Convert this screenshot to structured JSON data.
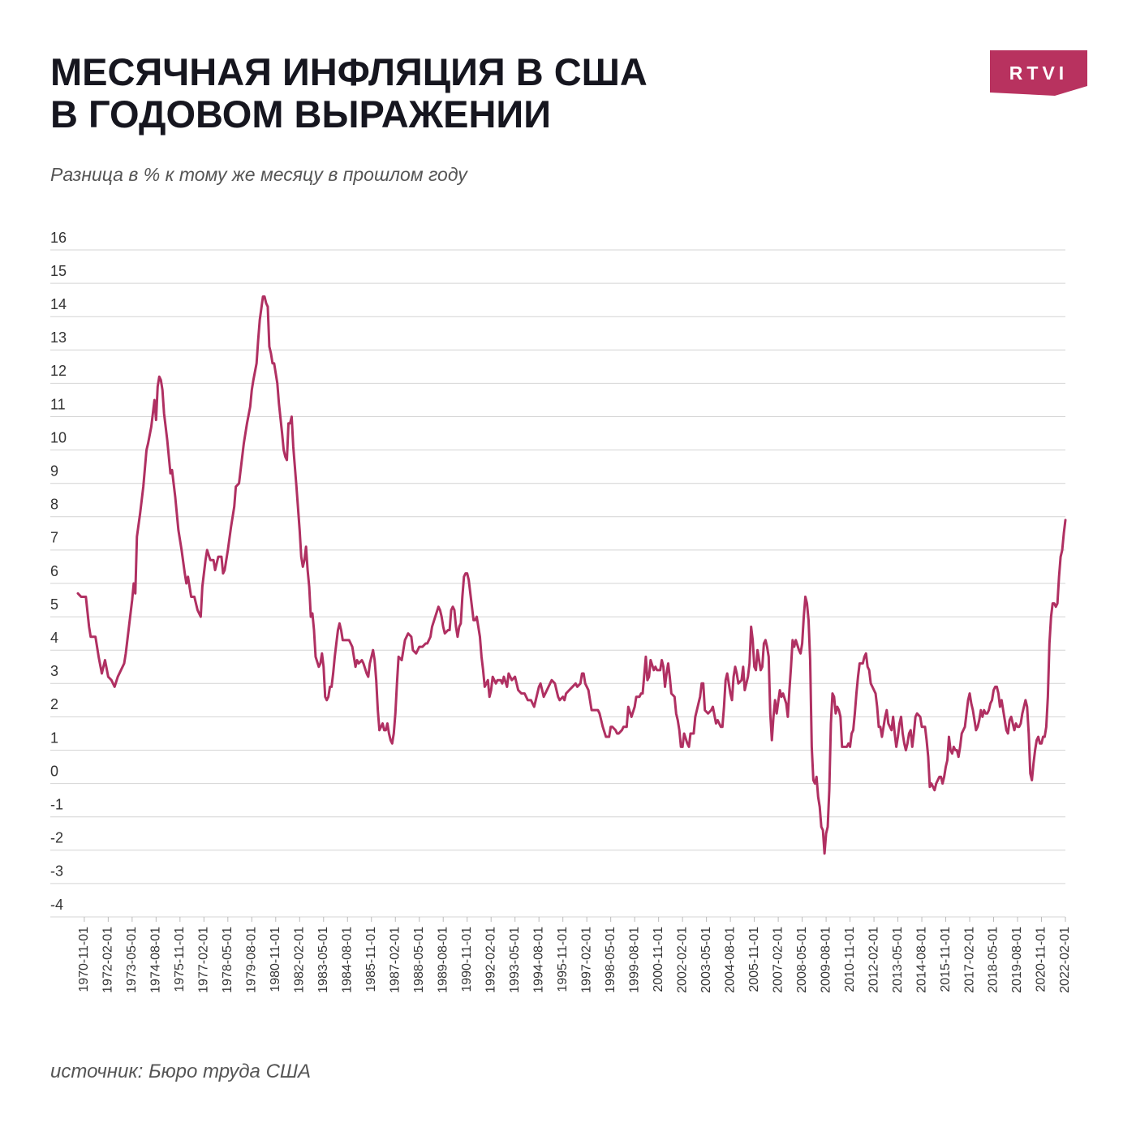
{
  "chart_data": {
    "type": "line",
    "title_lines": [
      "МЕСЯЧНАЯ ИНФЛЯЦИЯ В США",
      "В ГОДОВОМ ВЫРАЖЕНИИ"
    ],
    "subtitle": "Разница в % к тому же месяцу в прошлом году",
    "source": "источник: Бюро труда США",
    "logo": "RTVI",
    "grid": true,
    "ylim": [
      -4,
      16
    ],
    "yticks": [
      16,
      15,
      14,
      13,
      12,
      11,
      10,
      9,
      8,
      7,
      6,
      5,
      4,
      3,
      2,
      1,
      0,
      -1,
      -2,
      -3,
      -4
    ],
    "xlim": [
      "1970-07-01",
      "2022-02-01"
    ],
    "xticks": [
      "1970-11-01",
      "1972-02-01",
      "1973-05-01",
      "1974-08-01",
      "1975-11-01",
      "1977-02-01",
      "1978-05-01",
      "1979-08-01",
      "1980-11-01",
      "1982-02-01",
      "1983-05-01",
      "1984-08-01",
      "1985-11-01",
      "1987-02-01",
      "1988-05-01",
      "1989-08-01",
      "1990-11-01",
      "1992-02-01",
      "1993-05-01",
      "1994-08-01",
      "1995-11-01",
      "1997-02-01",
      "1998-05-01",
      "1999-08-01",
      "2000-11-01",
      "2002-02-01",
      "2003-05-01",
      "2004-08-01",
      "2005-11-01",
      "2007-02-01",
      "2008-05-01",
      "2009-08-01",
      "2010-11-01",
      "2012-02-01",
      "2013-05-01",
      "2014-08-01",
      "2015-11-01",
      "2017-02-01",
      "2018-05-01",
      "2019-08-01",
      "2020-11-01",
      "2022-02-01"
    ],
    "x": [
      "1970-07-01",
      "1970-09-01",
      "1970-12-01",
      "1971-02-01",
      "1971-03-01",
      "1971-06-01",
      "1971-08-01",
      "1971-10-01",
      "1971-12-01",
      "1972-02-01",
      "1972-04-01",
      "1972-06-01",
      "1972-08-01",
      "1972-10-01",
      "1972-12-01",
      "1973-01-01",
      "1973-03-01",
      "1973-05-01",
      "1973-06-01",
      "1973-07-01",
      "1973-08-01",
      "1973-10-01",
      "1973-12-01",
      "1974-02-01",
      "1974-03-01",
      "1974-05-01",
      "1974-06-01",
      "1974-07-01",
      "1974-08-01",
      "1974-09-01",
      "1974-10-01",
      "1974-11-01",
      "1974-12-01",
      "1975-01-01",
      "1975-03-01",
      "1975-05-01",
      "1975-06-01",
      "1975-08-01",
      "1975-10-01",
      "1975-12-01",
      "1976-02-01",
      "1976-03-01",
      "1976-04-01",
      "1976-06-01",
      "1976-08-01",
      "1976-10-01",
      "1976-12-01",
      "1977-01-01",
      "1977-03-01",
      "1977-04-01",
      "1977-06-01",
      "1977-08-01",
      "1977-09-01",
      "1977-11-01",
      "1978-01-01",
      "1978-02-01",
      "1978-03-01",
      "1978-05-01",
      "1978-07-01",
      "1978-09-01",
      "1978-10-01",
      "1978-12-01",
      "1979-02-01",
      "1979-03-01",
      "1979-05-01",
      "1979-07-01",
      "1979-08-01",
      "1979-09-01",
      "1979-11-01",
      "1979-12-01",
      "1980-01-01",
      "1980-03-01",
      "1980-04-01",
      "1980-05-01",
      "1980-06-01",
      "1980-07-01",
      "1980-08-01",
      "1980-09-01",
      "1980-10-01",
      "1980-12-01",
      "1981-01-01",
      "1981-03-01",
      "1981-04-01",
      "1981-05-01",
      "1981-06-01",
      "1981-07-01",
      "1981-08-01",
      "1981-09-01",
      "1981-10-01",
      "1981-12-01",
      "1982-02-01",
      "1982-03-01",
      "1982-04-01",
      "1982-05-01",
      "1982-06-01",
      "1982-07-01",
      "1982-08-01",
      "1982-09-01",
      "1982-10-01",
      "1982-11-01",
      "1982-12-01",
      "1983-02-01",
      "1983-03-01",
      "1983-04-01",
      "1983-05-01",
      "1983-06-01",
      "1983-07-01",
      "1983-08-01",
      "1983-09-01",
      "1983-10-01",
      "1983-11-01",
      "1983-12-01",
      "1984-01-01",
      "1984-02-01",
      "1984-03-01",
      "1984-04-01",
      "1984-05-01",
      "1984-07-01",
      "1984-09-01",
      "1984-11-01",
      "1985-01-01",
      "1985-02-01",
      "1985-03-01",
      "1985-05-01",
      "1985-06-01",
      "1985-08-01",
      "1985-09-01",
      "1985-10-01",
      "1985-11-01",
      "1985-12-01",
      "1986-01-01",
      "1986-02-01",
      "1986-03-01",
      "1986-04-01",
      "1986-06-01",
      "1986-07-01",
      "1986-08-01",
      "1986-09-01",
      "1986-10-01",
      "1986-11-01",
      "1986-12-01",
      "1987-01-01",
      "1987-02-01",
      "1987-03-01",
      "1987-04-01",
      "1987-06-01",
      "1987-08-01",
      "1987-09-01",
      "1987-10-01",
      "1987-12-01",
      "1988-01-01",
      "1988-03-01",
      "1988-05-01",
      "1988-07-01",
      "1988-09-01",
      "1988-10-01",
      "1988-12-01",
      "1989-01-01",
      "1989-03-01",
      "1989-05-01",
      "1989-06-01",
      "1989-07-01",
      "1989-08-01",
      "1989-09-01",
      "1989-11-01",
      "1989-12-01",
      "1990-01-01",
      "1990-02-01",
      "1990-03-01",
      "1990-04-01",
      "1990-05-01",
      "1990-06-01",
      "1990-07-01",
      "1990-08-01",
      "1990-09-01",
      "1990-10-01",
      "1990-11-01",
      "1990-12-01",
      "1991-01-01",
      "1991-02-01",
      "1991-03-01",
      "1991-04-01",
      "1991-05-01",
      "1991-06-01",
      "1991-07-01",
      "1991-08-01",
      "1991-09-01",
      "1991-10-01",
      "1991-11-01",
      "1991-12-01",
      "1992-01-01",
      "1992-02-01",
      "1992-03-01",
      "1992-05-01",
      "1992-06-01",
      "1992-08-01",
      "1992-09-01",
      "1992-10-01",
      "1992-12-01",
      "1993-01-01",
      "1993-03-01",
      "1993-05-01",
      "1993-07-01",
      "1993-09-01",
      "1993-11-01",
      "1994-01-01",
      "1994-03-01",
      "1994-05-01",
      "1994-06-01",
      "1994-08-01",
      "1994-09-01",
      "1994-11-01",
      "1994-12-01",
      "1995-02-01",
      "1995-04-01",
      "1995-06-01",
      "1995-08-01",
      "1995-09-01",
      "1995-11-01",
      "1995-12-01",
      "1996-01-01",
      "1996-03-01",
      "1996-05-01",
      "1996-07-01",
      "1996-08-01",
      "1996-10-01",
      "1996-11-01",
      "1996-12-01",
      "1997-01-01",
      "1997-03-01",
      "1997-04-01",
      "1997-05-01",
      "1997-07-01",
      "1997-09-01",
      "1997-10-01",
      "1997-12-01",
      "1998-02-01",
      "1998-04-01",
      "1998-05-01",
      "1998-06-01",
      "1998-08-01",
      "1998-09-01",
      "1998-10-01",
      "1998-12-01",
      "1999-01-01",
      "1999-03-01",
      "1999-04-01",
      "1999-06-01",
      "1999-08-01",
      "1999-09-01",
      "1999-11-01",
      "1999-12-01",
      "2000-01-01",
      "2000-03-01",
      "2000-04-01",
      "2000-05-01",
      "2000-06-01",
      "2000-08-01",
      "2000-09-01",
      "2000-10-01",
      "2000-11-01",
      "2000-12-01",
      "2001-01-01",
      "2001-02-01",
      "2001-03-01",
      "2001-04-01",
      "2001-05-01",
      "2001-06-01",
      "2001-07-01",
      "2001-09-01",
      "2001-10-01",
      "2001-11-01",
      "2001-12-01",
      "2002-01-01",
      "2002-02-01",
      "2002-03-01",
      "2002-05-01",
      "2002-06-01",
      "2002-07-01",
      "2002-09-01",
      "2002-10-01",
      "2002-12-01",
      "2003-01-01",
      "2003-02-01",
      "2003-03-01",
      "2003-04-01",
      "2003-06-01",
      "2003-08-01",
      "2003-09-01",
      "2003-11-01",
      "2003-12-01",
      "2004-02-01",
      "2004-03-01",
      "2004-04-01",
      "2004-05-01",
      "2004-06-01",
      "2004-08-01",
      "2004-09-01",
      "2004-10-01",
      "2004-11-01",
      "2004-12-01",
      "2005-01-01",
      "2005-03-01",
      "2005-04-01",
      "2005-05-01",
      "2005-07-01",
      "2005-08-01",
      "2005-09-01",
      "2005-10-01",
      "2005-11-01",
      "2005-12-01",
      "2006-01-01",
      "2006-03-01",
      "2006-04-01",
      "2006-05-01",
      "2006-06-01",
      "2006-07-01",
      "2006-08-01",
      "2006-09-01",
      "2006-10-01",
      "2006-11-01",
      "2006-12-01",
      "2007-01-01",
      "2007-03-01",
      "2007-04-01",
      "2007-05-01",
      "2007-07-01",
      "2007-08-01",
      "2007-09-01",
      "2007-10-01",
      "2007-11-01",
      "2007-12-01",
      "2008-01-01",
      "2008-03-01",
      "2008-04-01",
      "2008-05-01",
      "2008-06-01",
      "2008-07-01",
      "2008-08-01",
      "2008-09-01",
      "2008-10-01",
      "2008-11-01",
      "2008-12-01",
      "2009-01-01",
      "2009-02-01",
      "2009-03-01",
      "2009-04-01",
      "2009-05-01",
      "2009-06-01",
      "2009-07-01",
      "2009-08-01",
      "2009-09-01",
      "2009-10-01",
      "2009-11-01",
      "2009-12-01",
      "2010-01-01",
      "2010-02-01",
      "2010-03-01",
      "2010-04-01",
      "2010-05-01",
      "2010-06-01",
      "2010-08-01",
      "2010-09-01",
      "2010-10-01",
      "2010-11-01",
      "2010-12-01",
      "2011-01-01",
      "2011-02-01",
      "2011-03-01",
      "2011-04-01",
      "2011-05-01",
      "2011-07-01",
      "2011-08-01",
      "2011-09-01",
      "2011-10-01",
      "2011-11-01",
      "2011-12-01",
      "2012-01-01",
      "2012-03-01",
      "2012-04-01",
      "2012-05-01",
      "2012-06-01",
      "2012-07-01",
      "2012-08-01",
      "2012-09-01",
      "2012-10-01",
      "2012-11-01",
      "2012-12-01",
      "2013-01-01",
      "2013-02-01",
      "2013-03-01",
      "2013-04-01",
      "2013-05-01",
      "2013-06-01",
      "2013-07-01",
      "2013-08-01",
      "2013-09-01",
      "2013-10-01",
      "2013-11-01",
      "2013-12-01",
      "2014-01-01",
      "2014-02-01",
      "2014-03-01",
      "2014-04-01",
      "2014-05-01",
      "2014-07-01",
      "2014-08-01",
      "2014-09-01",
      "2014-10-01",
      "2014-11-01",
      "2014-12-01",
      "2015-01-01",
      "2015-02-01",
      "2015-03-01",
      "2015-04-01",
      "2015-05-01",
      "2015-06-01",
      "2015-07-01",
      "2015-08-01",
      "2015-09-01",
      "2015-10-01",
      "2015-11-01",
      "2015-12-01",
      "2016-01-01",
      "2016-02-01",
      "2016-03-01",
      "2016-04-01",
      "2016-05-01",
      "2016-06-01",
      "2016-07-01",
      "2016-08-01",
      "2016-09-01",
      "2016-10-01",
      "2016-11-01",
      "2016-12-01",
      "2017-01-01",
      "2017-02-01",
      "2017-03-01",
      "2017-04-01",
      "2017-05-01",
      "2017-06-01",
      "2017-07-01",
      "2017-08-01",
      "2017-09-01",
      "2017-10-01",
      "2017-11-01",
      "2017-12-01",
      "2018-01-01",
      "2018-02-01",
      "2018-03-01",
      "2018-04-01",
      "2018-05-01",
      "2018-06-01",
      "2018-07-01",
      "2018-08-01",
      "2018-09-01",
      "2018-10-01",
      "2018-11-01",
      "2018-12-01",
      "2019-01-01",
      "2019-02-01",
      "2019-03-01",
      "2019-04-01",
      "2019-05-01",
      "2019-06-01",
      "2019-07-01",
      "2019-08-01",
      "2019-09-01",
      "2019-10-01",
      "2019-11-01",
      "2019-12-01",
      "2020-01-01",
      "2020-02-01",
      "2020-03-01",
      "2020-04-01",
      "2020-05-01",
      "2020-06-01",
      "2020-07-01",
      "2020-08-01",
      "2020-09-01",
      "2020-10-01",
      "2020-11-01",
      "2020-12-01",
      "2021-01-01",
      "2021-02-01",
      "2021-03-01",
      "2021-04-01",
      "2021-05-01",
      "2021-06-01",
      "2021-07-01",
      "2021-08-01",
      "2021-09-01",
      "2021-10-01",
      "2021-11-01",
      "2021-12-01",
      "2022-01-01",
      "2022-02-01"
    ],
    "series": [
      {
        "color": "#b03062",
        "values": [
          5.7,
          5.6,
          5.6,
          4.7,
          4.4,
          4.4,
          3.8,
          3.3,
          3.7,
          3.2,
          3.1,
          2.9,
          3.2,
          3.4,
          3.6,
          3.9,
          4.7,
          5.5,
          6.0,
          5.7,
          7.4,
          8.1,
          8.9,
          10.0,
          10.2,
          10.7,
          11.1,
          11.5,
          10.9,
          11.9,
          12.2,
          12.1,
          11.8,
          11.1,
          10.3,
          9.3,
          9.4,
          8.6,
          7.6,
          7.0,
          6.3,
          6.0,
          6.2,
          5.6,
          5.6,
          5.2,
          5.0,
          5.9,
          6.7,
          7.0,
          6.7,
          6.7,
          6.4,
          6.8,
          6.8,
          6.3,
          6.4,
          7.0,
          7.7,
          8.3,
          8.9,
          9.0,
          9.8,
          10.2,
          10.8,
          11.3,
          11.8,
          12.1,
          12.6,
          13.3,
          13.9,
          14.6,
          14.6,
          14.4,
          14.3,
          13.1,
          12.9,
          12.6,
          12.6,
          12.0,
          11.4,
          10.5,
          10.0,
          9.8,
          9.7,
          10.8,
          10.8,
          11.0,
          10.1,
          8.9,
          7.6,
          6.8,
          6.5,
          6.7,
          7.1,
          6.4,
          5.9,
          5.0,
          5.1,
          4.6,
          3.8,
          3.5,
          3.6,
          3.9,
          3.5,
          2.6,
          2.5,
          2.6,
          2.9,
          2.9,
          3.3,
          3.8,
          4.2,
          4.6,
          4.8,
          4.6,
          4.3,
          4.3,
          4.3,
          4.1,
          3.5,
          3.7,
          3.6,
          3.7,
          3.6,
          3.3,
          3.2,
          3.6,
          3.8,
          4.0,
          3.7,
          3.1,
          2.2,
          1.6,
          1.8,
          1.6,
          1.6,
          1.8,
          1.5,
          1.3,
          1.2,
          1.5,
          2.1,
          3.0,
          3.8,
          3.7,
          4.3,
          4.4,
          4.5,
          4.4,
          4.0,
          3.9,
          4.1,
          4.1,
          4.2,
          4.2,
          4.4,
          4.7,
          5.0,
          5.3,
          5.2,
          5.0,
          4.7,
          4.5,
          4.6,
          4.6,
          5.2,
          5.3,
          5.2,
          4.7,
          4.4,
          4.7,
          4.8,
          5.6,
          6.2,
          6.3,
          6.3,
          6.1,
          5.7,
          5.3,
          4.9,
          4.9,
          5.0,
          4.7,
          4.4,
          3.8,
          3.4,
          2.9,
          3.0,
          3.1,
          2.6,
          2.8,
          3.2,
          3.0,
          3.1,
          3.1,
          3.0,
          3.2,
          2.9,
          3.3,
          3.1,
          3.2,
          2.8,
          2.7,
          2.7,
          2.5,
          2.5,
          2.3,
          2.5,
          2.9,
          3.0,
          2.6,
          2.7,
          2.9,
          3.1,
          3.0,
          2.6,
          2.5,
          2.6,
          2.5,
          2.7,
          2.8,
          2.9,
          3.0,
          2.9,
          3.0,
          3.3,
          3.3,
          3.0,
          2.8,
          2.5,
          2.2,
          2.2,
          2.2,
          2.1,
          1.7,
          1.4,
          1.4,
          1.7,
          1.7,
          1.6,
          1.5,
          1.5,
          1.6,
          1.7,
          1.7,
          2.3,
          2.0,
          2.3,
          2.6,
          2.6,
          2.7,
          2.7,
          3.8,
          3.1,
          3.2,
          3.7,
          3.4,
          3.5,
          3.4,
          3.4,
          3.4,
          3.7,
          3.5,
          2.9,
          3.3,
          3.6,
          3.2,
          2.7,
          2.6,
          2.1,
          1.9,
          1.6,
          1.1,
          1.1,
          1.5,
          1.2,
          1.1,
          1.5,
          1.5,
          2.0,
          2.4,
          2.6,
          3.0,
          3.0,
          2.2,
          2.1,
          2.2,
          2.3,
          1.8,
          1.9,
          1.7,
          1.7,
          2.3,
          3.1,
          3.3,
          2.7,
          2.5,
          3.2,
          3.5,
          3.3,
          3.0,
          3.1,
          3.5,
          2.8,
          3.2,
          3.6,
          4.7,
          4.3,
          3.5,
          3.4,
          4.0,
          3.4,
          3.5,
          4.2,
          4.3,
          4.1,
          3.8,
          2.1,
          1.3,
          2.0,
          2.5,
          2.1,
          2.8,
          2.6,
          2.7,
          2.4,
          2.0,
          2.8,
          3.5,
          4.3,
          4.1,
          4.3,
          4.0,
          3.9,
          4.2,
          5.0,
          5.6,
          5.4,
          4.9,
          3.7,
          1.1,
          0.1,
          0.0,
          0.2,
          -0.4,
          -0.7,
          -1.3,
          -1.4,
          -2.1,
          -1.5,
          -1.3,
          -0.2,
          1.8,
          2.7,
          2.6,
          2.1,
          2.3,
          2.2,
          2.0,
          1.1,
          1.1,
          1.1,
          1.2,
          1.1,
          1.5,
          1.6,
          2.1,
          2.7,
          3.2,
          3.6,
          3.6,
          3.8,
          3.9,
          3.5,
          3.4,
          3.0,
          2.9,
          2.7,
          2.3,
          1.7,
          1.7,
          1.4,
          1.7,
          2.0,
          2.2,
          1.8,
          1.7,
          1.6,
          2.0,
          1.5,
          1.1,
          1.4,
          1.8,
          2.0,
          1.5,
          1.2,
          1.0,
          1.2,
          1.5,
          1.6,
          1.1,
          1.5,
          2.0,
          2.1,
          2.0,
          1.7,
          1.7,
          1.7,
          1.3,
          0.8,
          -0.1,
          0.0,
          -0.1,
          -0.2,
          0.0,
          0.1,
          0.2,
          0.2,
          0.0,
          0.2,
          0.5,
          0.7,
          1.4,
          1.0,
          0.9,
          1.1,
          1.0,
          1.0,
          0.8,
          1.1,
          1.5,
          1.6,
          1.7,
          2.1,
          2.5,
          2.7,
          2.4,
          2.2,
          1.9,
          1.6,
          1.7,
          1.9,
          2.2,
          2.0,
          2.2,
          2.1,
          2.1,
          2.2,
          2.4,
          2.5,
          2.8,
          2.9,
          2.9,
          2.7,
          2.3,
          2.5,
          2.2,
          1.9,
          1.6,
          1.5,
          1.9,
          2.0,
          1.8,
          1.6,
          1.8,
          1.7,
          1.7,
          1.8,
          2.1,
          2.3,
          2.5,
          2.3,
          1.5,
          0.3,
          0.1,
          0.6,
          1.0,
          1.3,
          1.4,
          1.2,
          1.2,
          1.4,
          1.4,
          1.7,
          2.6,
          4.2,
          5.0,
          5.4,
          5.4,
          5.3,
          5.4,
          6.2,
          6.8,
          7.0,
          7.5,
          7.9
        ]
      }
    ]
  }
}
